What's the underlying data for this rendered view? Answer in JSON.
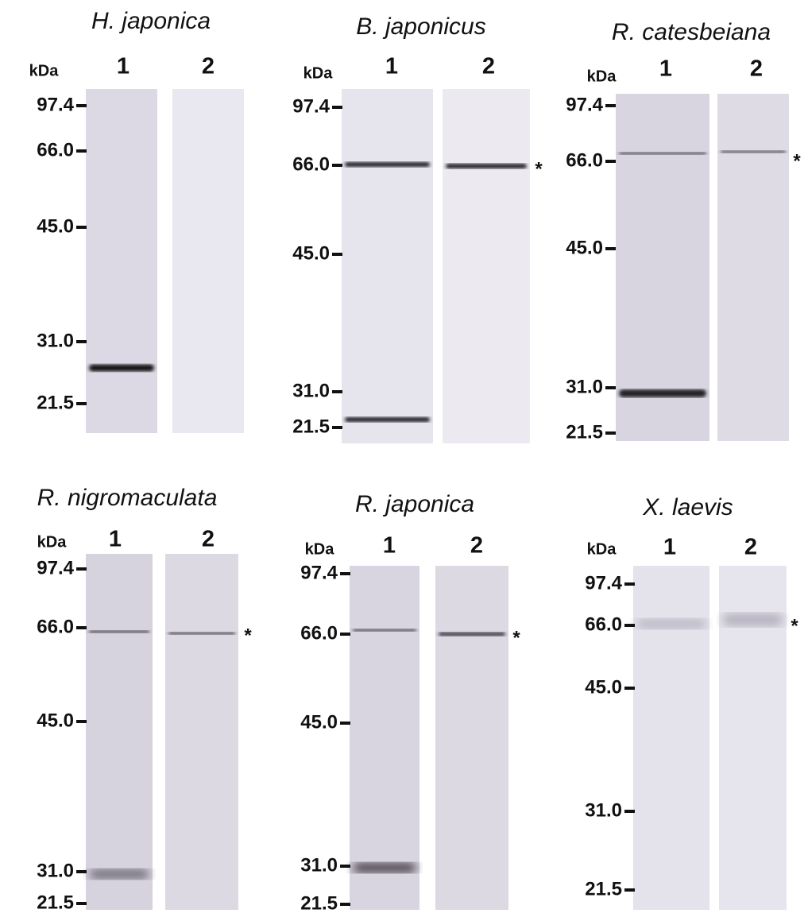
{
  "panels": [
    {
      "title": "H. japonica",
      "unit": "kDa",
      "lanes": [
        "1",
        "2"
      ],
      "markers": [
        "97.4",
        "66.0",
        "45.0",
        "31.0",
        "21.5"
      ]
    },
    {
      "title": "B. japonicus",
      "unit": "kDa",
      "lanes": [
        "1",
        "2"
      ],
      "markers": [
        "97.4",
        "66.0",
        "45.0",
        "31.0",
        "21.5"
      ],
      "asterisk": "*"
    },
    {
      "title": "R. catesbeiana",
      "unit": "kDa",
      "lanes": [
        "1",
        "2"
      ],
      "markers": [
        "97.4",
        "66.0",
        "45.0",
        "31.0",
        "21.5"
      ],
      "asterisk": "*"
    },
    {
      "title": "R. nigromaculata",
      "unit": "kDa",
      "lanes": [
        "1",
        "2"
      ],
      "markers": [
        "97.4",
        "66.0",
        "45.0",
        "31.0",
        "21.5"
      ],
      "asterisk": "*"
    },
    {
      "title": "R. japonica",
      "unit": "kDa",
      "lanes": [
        "1",
        "2"
      ],
      "markers": [
        "97.4",
        "66.0",
        "45.0",
        "31.0",
        "21.5"
      ],
      "asterisk": "*"
    },
    {
      "title": "X. laevis",
      "unit": "kDa",
      "lanes": [
        "1",
        "2"
      ],
      "markers": [
        "97.4",
        "66.0",
        "45.0",
        "31.0",
        "21.5"
      ],
      "asterisk": "*"
    }
  ]
}
